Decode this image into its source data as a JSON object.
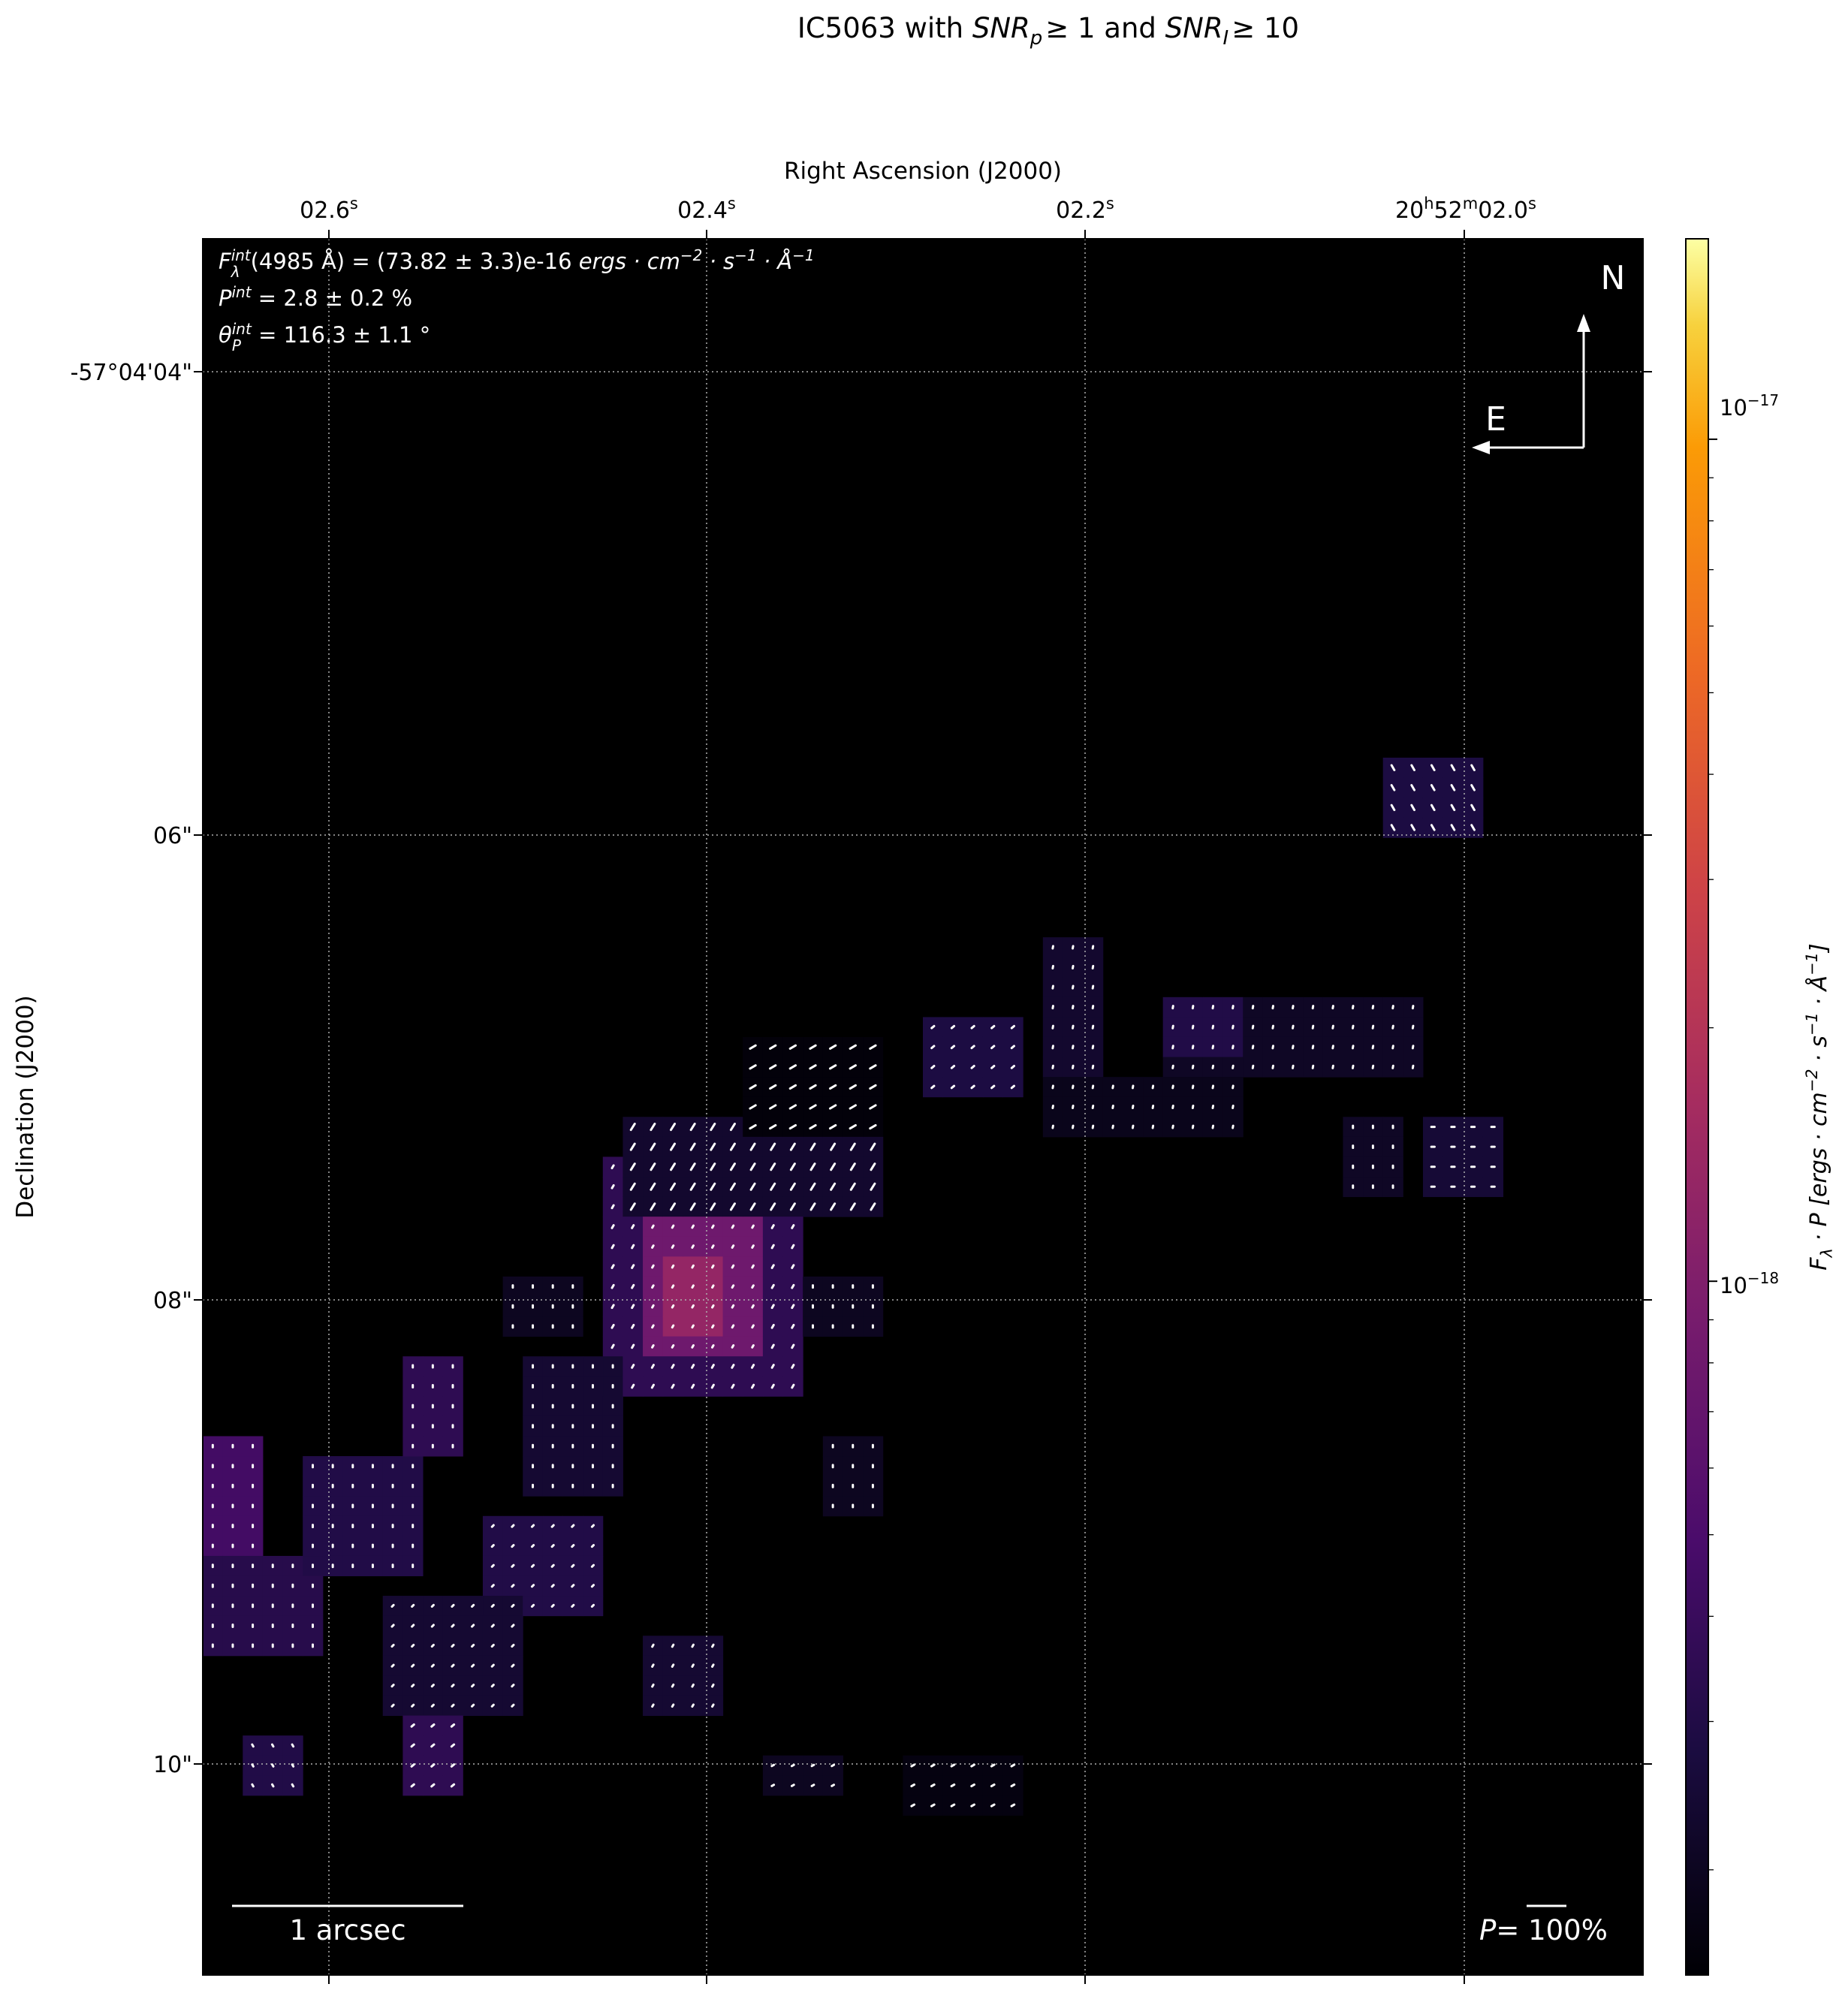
{
  "chart_data": {
    "type": "heatmap",
    "title": "IC5063 with SNR_p ≥ 1 and SNR_I ≥ 10",
    "title_parts": {
      "object": "IC5063 with ",
      "snrp": "SNR",
      "snrp_sub": "p",
      "mid": "≥ 1 and ",
      "snri": "SNR",
      "snri_sub": "I",
      "end": "≥ 10"
    },
    "xlabel": "Right Ascension (J2000)",
    "ylabel": "Declination (J2000)",
    "x_ticks": [
      "02.6s",
      "02.4s",
      "02.2s",
      "20h52m02.0s"
    ],
    "x_tick_labels": [
      {
        "main": "02.6",
        "sup": "s"
      },
      {
        "main": "02.4",
        "sup": "s"
      },
      {
        "main": "02.2",
        "sup": "s"
      },
      {
        "pre": "20",
        "h": "h",
        "mid": "52",
        "m": "m",
        "main": "02.0",
        "sup": "s"
      }
    ],
    "y_ticks": [
      "-57°04'04\"",
      "06\"",
      "08\"",
      "10\""
    ],
    "grid": true,
    "colorbar": {
      "label": "F_λ · P [ergs · cm^-2 · s^-1 · Å^-1]",
      "label_parts": {
        "f": "F",
        "fsub": "λ",
        "rest": " · P [ergs · cm",
        "e1": "−2",
        "s": " · s",
        "e2": "−1",
        "a": " · Å",
        "e3": "−1",
        "close": "]"
      },
      "scale": "log",
      "colormap": "inferno",
      "range": [
        1.5e-19,
        1.73e-17
      ],
      "ticks": [
        {
          "value": 1e-17,
          "base": "10",
          "exp": "−17"
        },
        {
          "value": 1e-18,
          "base": "10",
          "exp": "−18"
        }
      ]
    },
    "annotations": {
      "flux": {
        "sym": "F",
        "sub": "λ",
        "sup": "int",
        "text": "(4985 Å) = (73.82 ± 3.3)e-16 ",
        "unit": "ergs · cm",
        "e1": "−2",
        "s": " · s",
        "e2": "−1",
        "a": " · Å",
        "e3": "−1"
      },
      "pol": {
        "sym": "P",
        "sup": "int",
        "text": " = 2.8 ± 0.2 %"
      },
      "angle": {
        "sym": "θ",
        "sub": "P",
        "sup": "int",
        "text": " = 116.3 ± 1.1 °"
      }
    },
    "compass": {
      "north": "N",
      "east": "E"
    },
    "scale_bar": {
      "label": "1 arcsec"
    },
    "pol_scale": {
      "label_p": "P",
      "label_rest": "= 100%",
      "reference_percent": 100
    },
    "grid_shape": {
      "cols": 72,
      "rows": 87
    },
    "regions": [
      {
        "cols": [
          20,
          29
        ],
        "rows": [
          46,
          57
        ],
        "value": 3.5e-19,
        "p": 8,
        "angle": 60
      },
      {
        "cols": [
          22,
          27
        ],
        "rows": [
          49,
          55
        ],
        "value": 8e-19,
        "p": 6,
        "angle": 60
      },
      {
        "cols": [
          23,
          25
        ],
        "rows": [
          51,
          54
        ],
        "value": 1.3e-18,
        "p": 4,
        "angle": 60
      },
      {
        "cols": [
          21,
          33
        ],
        "rows": [
          44,
          48
        ],
        "value": 2.3e-19,
        "p": 18,
        "angle": 58
      },
      {
        "cols": [
          27,
          33
        ],
        "rows": [
          40,
          44
        ],
        "value": 1.6e-19,
        "p": 16,
        "angle": 30
      },
      {
        "cols": [
          36,
          40
        ],
        "rows": [
          39,
          42
        ],
        "value": 2.8e-19,
        "p": 8,
        "angle": 40
      },
      {
        "cols": [
          42,
          44
        ],
        "rows": [
          35,
          41
        ],
        "value": 2.3e-19,
        "p": 6,
        "angle": 80
      },
      {
        "cols": [
          48,
          60
        ],
        "rows": [
          38,
          41
        ],
        "value": 2.1e-19,
        "p": 6,
        "angle": 80
      },
      {
        "cols": [
          48,
          51
        ],
        "rows": [
          38,
          40
        ],
        "value": 3e-19,
        "p": 6,
        "angle": 80
      },
      {
        "cols": [
          42,
          51
        ],
        "rows": [
          42,
          44
        ],
        "value": 1.9e-19,
        "p": 4,
        "angle": 80
      },
      {
        "cols": [
          59,
          63
        ],
        "rows": [
          26,
          29
        ],
        "value": 2.8e-19,
        "p": 14,
        "angle": 120
      },
      {
        "cols": [
          57,
          59
        ],
        "rows": [
          44,
          47
        ],
        "value": 2.1e-19,
        "p": 5,
        "angle": 90
      },
      {
        "cols": [
          61,
          64
        ],
        "rows": [
          44,
          47
        ],
        "value": 2.5e-19,
        "p": 8,
        "angle": 0
      },
      {
        "cols": [
          0,
          2
        ],
        "rows": [
          60,
          65
        ],
        "value": 4.5e-19,
        "p": 4,
        "angle": 90
      },
      {
        "cols": [
          0,
          5
        ],
        "rows": [
          66,
          70
        ],
        "value": 3.2e-19,
        "p": 4,
        "angle": 90
      },
      {
        "cols": [
          5,
          10
        ],
        "rows": [
          61,
          66
        ],
        "value": 3e-19,
        "p": 4,
        "angle": 90
      },
      {
        "cols": [
          10,
          12
        ],
        "rows": [
          56,
          60
        ],
        "value": 3.5e-19,
        "p": 4,
        "angle": 90
      },
      {
        "cols": [
          14,
          19
        ],
        "rows": [
          64,
          68
        ],
        "value": 3e-19,
        "p": 5,
        "angle": 45
      },
      {
        "cols": [
          9,
          15
        ],
        "rows": [
          68,
          73
        ],
        "value": 2.4e-19,
        "p": 5,
        "angle": 45
      },
      {
        "cols": [
          10,
          12
        ],
        "rows": [
          74,
          77
        ],
        "value": 3.5e-19,
        "p": 8,
        "angle": 40
      },
      {
        "cols": [
          16,
          20
        ],
        "rows": [
          56,
          62
        ],
        "value": 2.4e-19,
        "p": 4,
        "angle": 90
      },
      {
        "cols": [
          15,
          18
        ],
        "rows": [
          52,
          54
        ],
        "value": 2e-19,
        "p": 4,
        "angle": 90
      },
      {
        "cols": [
          30,
          33
        ],
        "rows": [
          52,
          54
        ],
        "value": 2e-19,
        "p": 4,
        "angle": 90
      },
      {
        "cols": [
          22,
          25
        ],
        "rows": [
          70,
          73
        ],
        "value": 2.4e-19,
        "p": 5,
        "angle": 60
      },
      {
        "cols": [
          31,
          33
        ],
        "rows": [
          60,
          63
        ],
        "value": 2e-19,
        "p": 4,
        "angle": 90
      },
      {
        "cols": [
          28,
          31
        ],
        "rows": [
          76,
          77
        ],
        "value": 2e-19,
        "p": 6,
        "angle": 30
      },
      {
        "cols": [
          2,
          4
        ],
        "rows": [
          75,
          77
        ],
        "value": 3e-19,
        "p": 5,
        "angle": 120
      },
      {
        "cols": [
          35,
          40
        ],
        "rows": [
          76,
          78
        ],
        "value": 1.7e-19,
        "p": 8,
        "angle": 30
      }
    ]
  }
}
